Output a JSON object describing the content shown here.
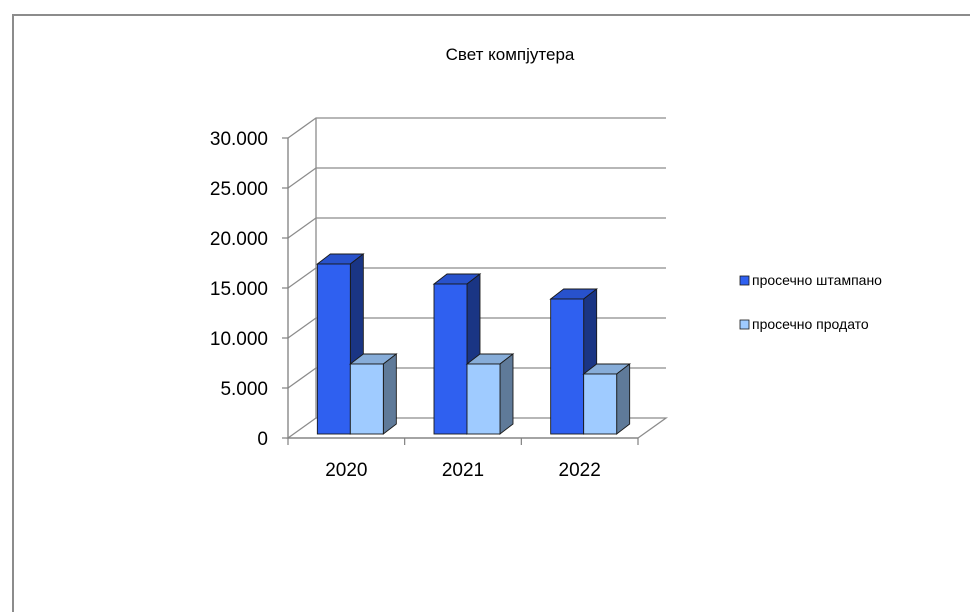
{
  "chart_data": {
    "type": "bar",
    "title": "Свет компјутера",
    "categories": [
      "2020",
      "2021",
      "2022"
    ],
    "series": [
      {
        "name": "просечно штампано",
        "values": [
          17000,
          15000,
          13500
        ],
        "color": "#2f60f0"
      },
      {
        "name": "просечно продато",
        "values": [
          7000,
          7000,
          6000
        ],
        "color": "#9fcbff"
      }
    ],
    "ylim": [
      0,
      30000
    ],
    "yticks": [
      "0",
      "5.000",
      "10.000",
      "15.000",
      "20.000",
      "25.000",
      "30.000"
    ],
    "grid": true,
    "legend": "right",
    "style": "3d-clustered"
  }
}
